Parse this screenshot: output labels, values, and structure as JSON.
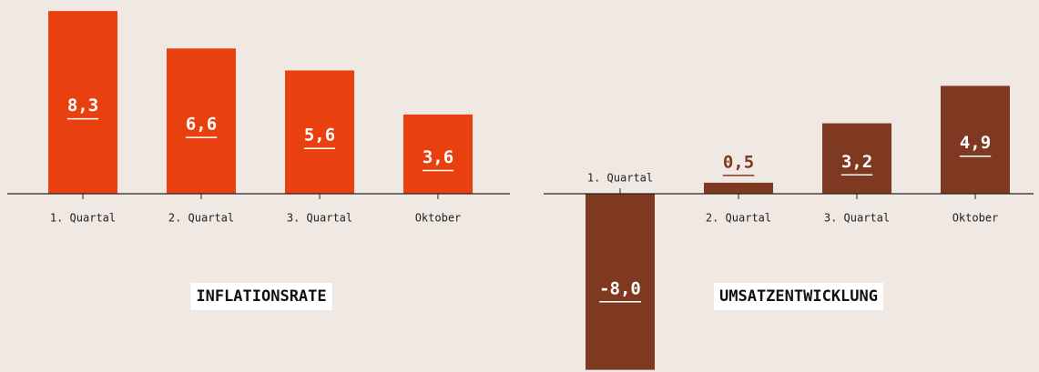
{
  "chart_data": [
    {
      "type": "bar",
      "title": "INFLATIONSRATE",
      "categories": [
        "1. Quartal",
        "2. Quartal",
        "3. Quartal",
        "Oktober"
      ],
      "values": [
        8.3,
        6.6,
        5.6,
        3.6
      ],
      "value_labels": [
        "8,3",
        "6,6",
        "5,6",
        "3,6"
      ],
      "color": "#e8410f"
    },
    {
      "type": "bar",
      "title": "UMSATZENTWICKLUNG",
      "categories": [
        "1. Quartal",
        "2. Quartal",
        "3. Quartal",
        "Oktober"
      ],
      "values": [
        -8.0,
        0.5,
        3.2,
        4.9
      ],
      "value_labels": [
        "-8,0",
        "0,5",
        "3,2",
        "4,9"
      ],
      "color": "#7e3920"
    }
  ]
}
